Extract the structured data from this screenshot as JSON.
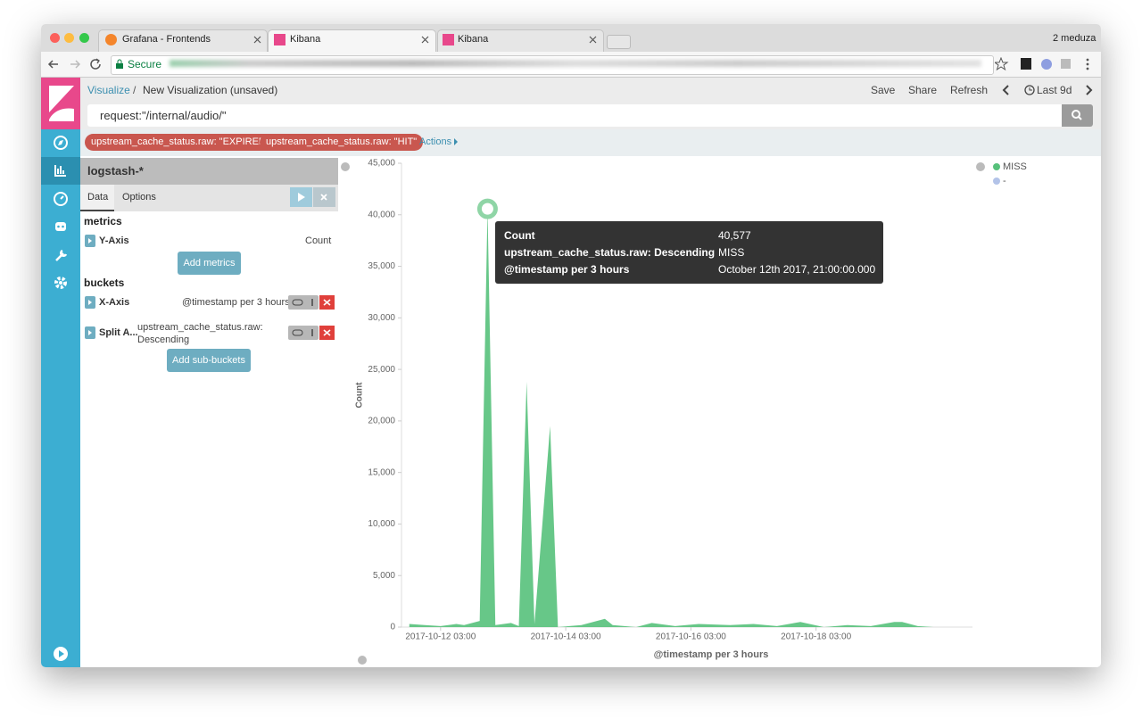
{
  "browser": {
    "tabs": [
      "Grafana - Frontends",
      "Kibana",
      "Kibana"
    ],
    "profile": "2 meduza",
    "secure": "Secure"
  },
  "header": {
    "breadcrumb": [
      "Visualize",
      "New Visualization (unsaved)"
    ],
    "separator": "/",
    "actions": [
      "Save",
      "Share",
      "Refresh"
    ],
    "time_range": "Last 9d"
  },
  "query": "request:\"/internal/audio/\"",
  "filters": {
    "items": [
      "upstream_cache_status.raw: \"EXPIRED\"",
      "upstream_cache_status.raw: \"HIT\""
    ],
    "actions": "Actions"
  },
  "editor": {
    "index": "logstash-*",
    "tabs": [
      "Data",
      "Options"
    ],
    "metrics": {
      "title": "metrics",
      "items": [
        {
          "label": "Y-Axis",
          "value": "Count"
        }
      ],
      "add": "Add metrics"
    },
    "buckets": {
      "title": "buckets",
      "items": [
        {
          "label": "X-Axis",
          "value": "@timestamp per 3 hours"
        },
        {
          "label": "Split A...",
          "value": "upstream_cache_status.raw: Descending"
        }
      ],
      "add": "Add sub-buckets"
    }
  },
  "chart_data": {
    "type": "area",
    "xlabel": "@timestamp per 3 hours",
    "ylabel": "Count",
    "legend": "right",
    "grid": false,
    "x": [
      "2017-10-11T15:00",
      "2017-10-11T21:00",
      "2017-10-12T03:00",
      "2017-10-12T09:00",
      "2017-10-12T12:00",
      "2017-10-12T18:00",
      "2017-10-12T21:00",
      "2017-10-13T00:00",
      "2017-10-13T06:00",
      "2017-10-13T09:00",
      "2017-10-13T12:00",
      "2017-10-13T15:00",
      "2017-10-13T21:00",
      "2017-10-14T00:00",
      "2017-10-14T09:00",
      "2017-10-14T18:00",
      "2017-10-14T21:00",
      "2017-10-15T06:00",
      "2017-10-15T12:00",
      "2017-10-15T21:00",
      "2017-10-16T06:00",
      "2017-10-16T18:00",
      "2017-10-17T03:00",
      "2017-10-17T12:00",
      "2017-10-17T21:00",
      "2017-10-18T06:00",
      "2017-10-18T15:00",
      "2017-10-19T00:00",
      "2017-10-19T09:00",
      "2017-10-19T12:00",
      "2017-10-19T18:00",
      "2017-10-20T00:00"
    ],
    "series": [
      {
        "name": "MISS",
        "color": "#57c17b",
        "values": [
          300,
          200,
          100,
          300,
          200,
          600,
          40577,
          200,
          400,
          100,
          23800,
          300,
          19500,
          0,
          200,
          800,
          200,
          0,
          400,
          100,
          300,
          200,
          300,
          100,
          500,
          0,
          200,
          100,
          500,
          500,
          100,
          0
        ]
      },
      {
        "name": "-",
        "color": "#b3c3e8",
        "values": [
          null,
          null,
          null,
          null,
          null,
          null,
          null,
          null,
          null,
          null,
          null,
          null,
          null,
          null,
          null,
          null,
          null,
          null,
          null,
          null,
          null,
          null,
          null,
          null,
          null,
          null,
          null,
          null,
          null,
          null,
          null,
          null
        ]
      }
    ],
    "xlim": [
      "2017-10-11T12:00",
      "2017-10-20T15:00"
    ],
    "xticks": [
      {
        "value": "2017-10-12T03:00",
        "label": "2017-10-12 03:00"
      },
      {
        "value": "2017-10-14T03:00",
        "label": "2017-10-14 03:00"
      },
      {
        "value": "2017-10-16T03:00",
        "label": "2017-10-16 03:00"
      },
      {
        "value": "2017-10-18T03:00",
        "label": "2017-10-18 03:00"
      }
    ],
    "ylim": [
      0,
      45000
    ],
    "yticks": [
      0,
      {
        "value": 5000,
        "label": "5,000"
      },
      {
        "value": 10000,
        "label": "10,000"
      },
      {
        "value": 15000,
        "label": "15,000"
      },
      {
        "value": 20000,
        "label": "20,000"
      },
      {
        "value": 25000,
        "label": "25,000"
      },
      {
        "value": 30000,
        "label": "30,000"
      },
      {
        "value": 35000,
        "label": "35,000"
      },
      {
        "value": 40000,
        "label": "40,000"
      },
      {
        "value": 45000,
        "label": "45,000"
      }
    ]
  },
  "tooltip": {
    "rows": [
      [
        "Count",
        "40,577"
      ],
      [
        "upstream_cache_status.raw: Descending",
        "MISS"
      ],
      [
        "@timestamp per 3 hours",
        "October 12th 2017, 21:00:00.000"
      ]
    ]
  }
}
